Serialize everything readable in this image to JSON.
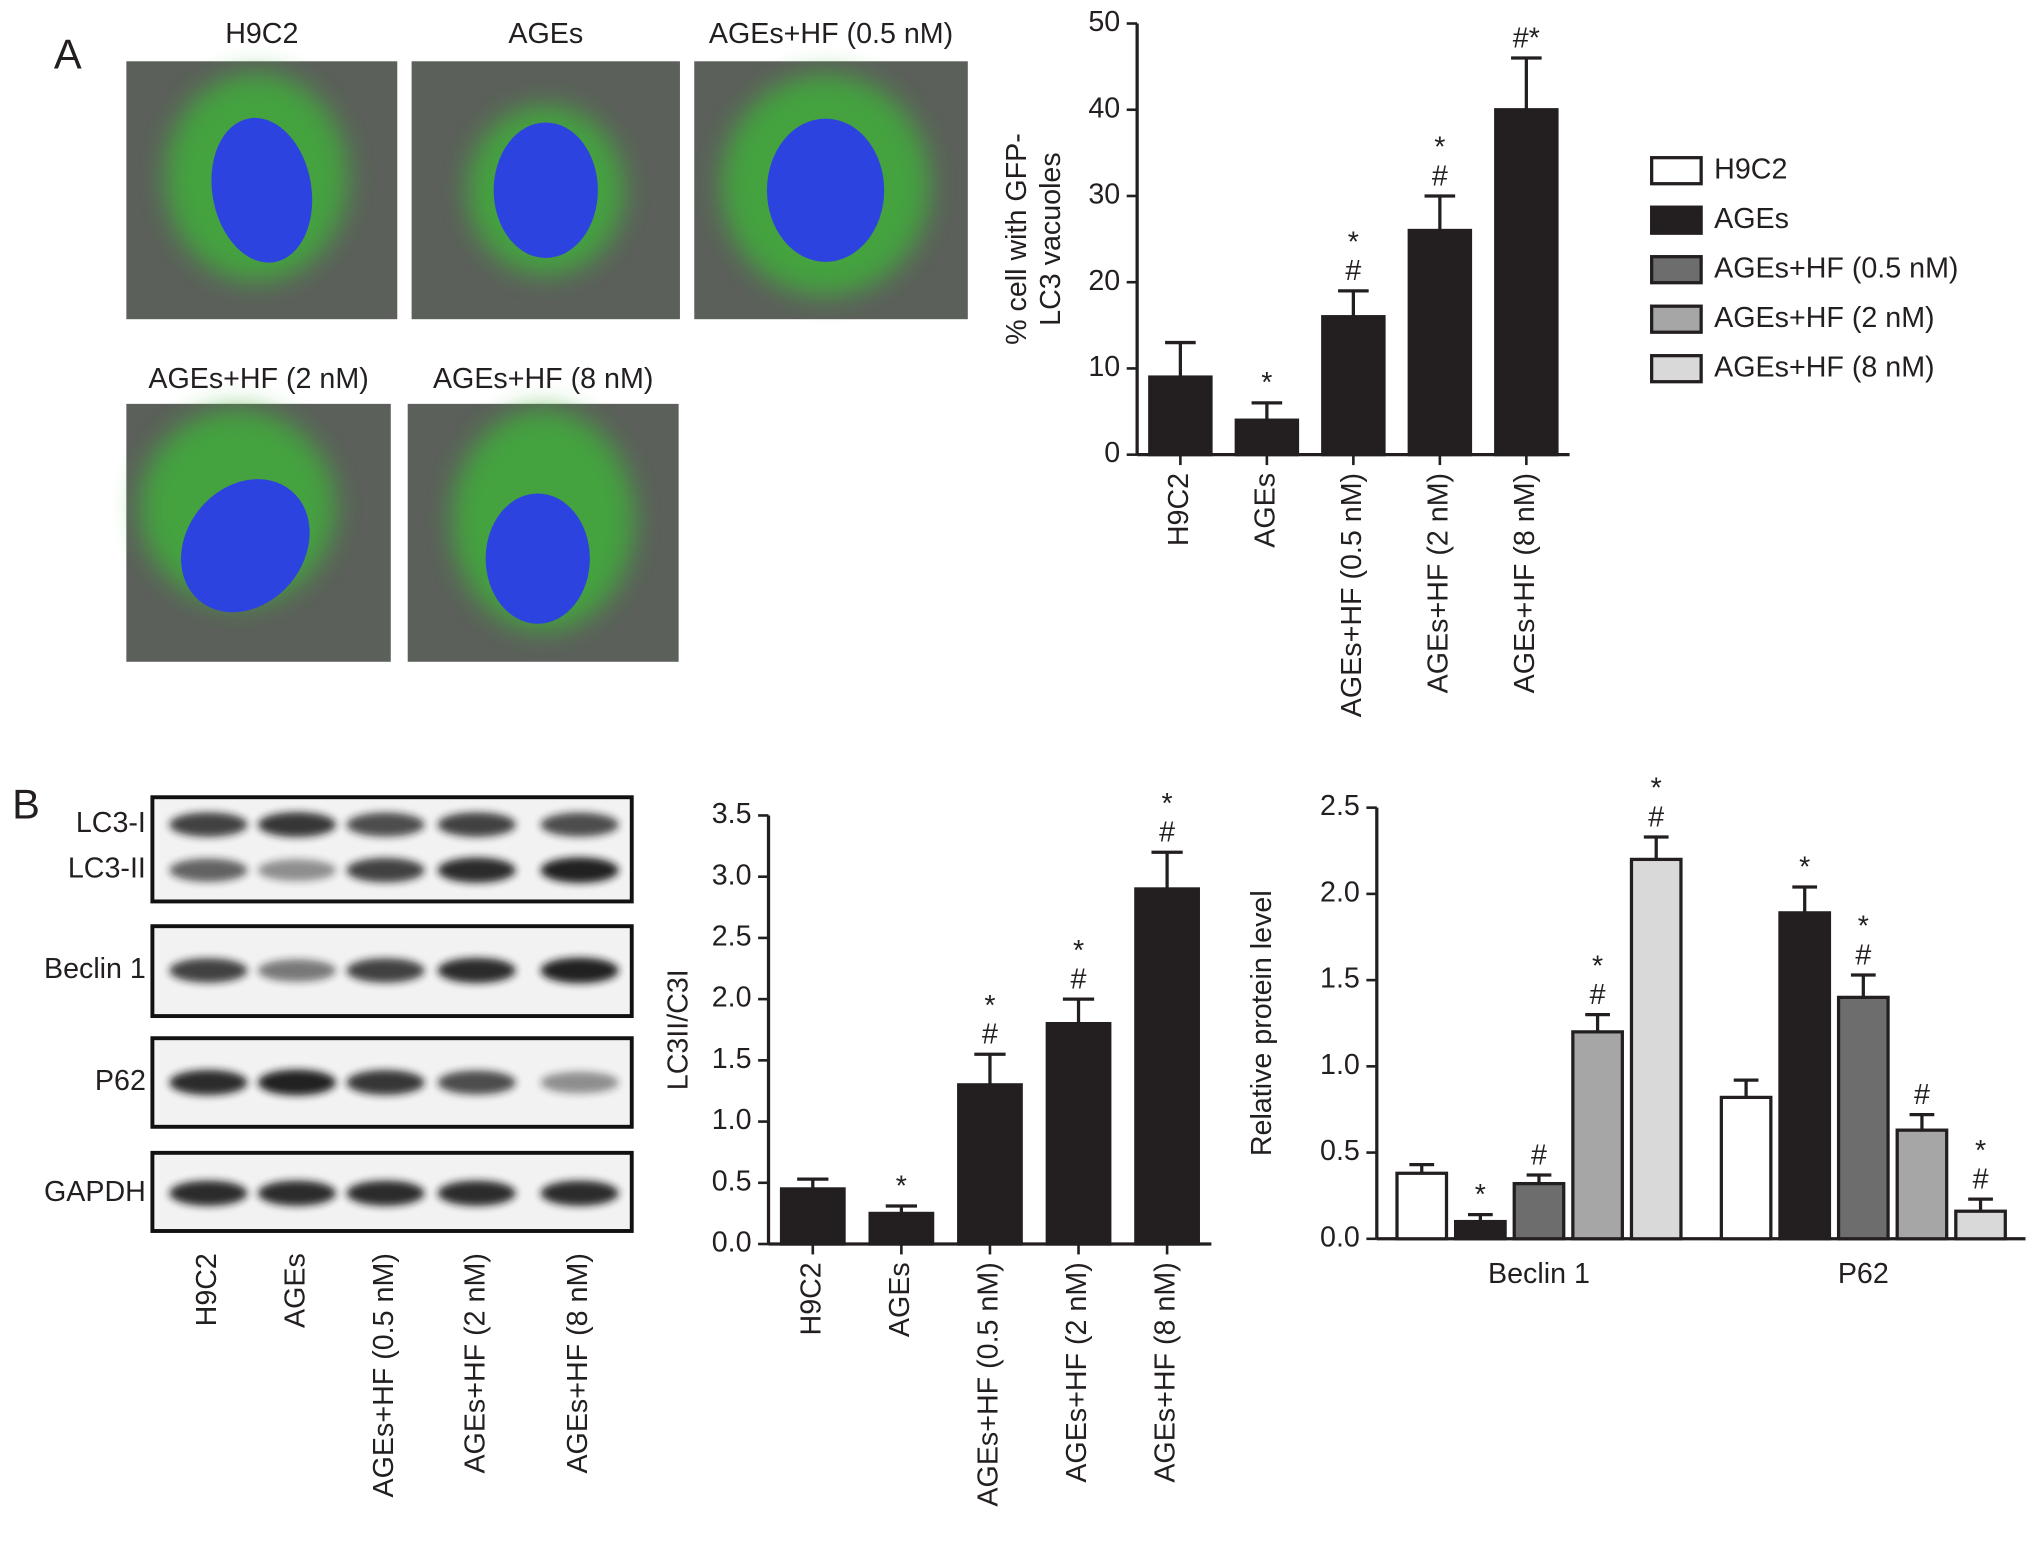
{
  "panels": [
    "A",
    "B"
  ],
  "micrographs": [
    "H9C2",
    "AGEs",
    "AGEs+HF (0.5 nM)",
    "AGEs+HF (2 nM)",
    "AGEs+HF (8 nM)"
  ],
  "blot": {
    "rows": [
      "LC3-I",
      "LC3-II",
      "Beclin 1",
      "P62",
      "GAPDH"
    ],
    "lanes": [
      "H9C2",
      "AGEs",
      "AGEs+HF (0.5 nM)",
      "AGEs+HF (2 nM)",
      "AGEs+HF (8 nM)"
    ]
  },
  "chart_data": [
    {
      "type": "bar",
      "ylabel": [
        "% cell with GFP-",
        "LC3 vacuoles"
      ],
      "categories": [
        "H9C2",
        "AGEs",
        "AGEs+HF (0.5 nM)",
        "AGEs+HF (2 nM)",
        "AGEs+HF (8 nM)"
      ],
      "values": [
        9,
        4,
        16,
        26,
        40
      ],
      "errors": [
        4,
        2,
        3,
        4,
        6
      ],
      "annotations": [
        null,
        [
          "*"
        ],
        [
          "*",
          "#"
        ],
        [
          "*",
          "#"
        ],
        [
          "#*"
        ]
      ],
      "color": "#231f20",
      "ylim": [
        0,
        50
      ],
      "yticks": [
        0,
        10,
        20,
        30,
        40,
        50
      ]
    },
    {
      "type": "bar",
      "ylabel": [
        "LC3II/C3I"
      ],
      "categories": [
        "H9C2",
        "AGEs",
        "AGEs+HF (0.5 nM)",
        "AGEs+HF (2 nM)",
        "AGEs+HF (8 nM)"
      ],
      "values": [
        0.45,
        0.25,
        1.3,
        1.8,
        2.9
      ],
      "errors": [
        0.08,
        0.06,
        0.25,
        0.2,
        0.3
      ],
      "annotations": [
        null,
        [
          "*"
        ],
        [
          "*",
          "#"
        ],
        [
          "*",
          "#"
        ],
        [
          "*",
          "#"
        ]
      ],
      "color": "#231f20",
      "ylim": [
        0,
        3.5
      ],
      "yticks": [
        {
          "value": 0,
          "label": "0.0"
        },
        0.5,
        {
          "value": 1,
          "label": "1.0"
        },
        1.5,
        {
          "value": 2,
          "label": "2.0"
        },
        2.5,
        {
          "value": 3,
          "label": "3.0"
        },
        3.5
      ]
    },
    {
      "type": "bar",
      "ylabel": [
        "Relative protein level"
      ],
      "categories": [
        "Beclin 1",
        "P62"
      ],
      "series": [
        {
          "name": "H9C2",
          "color": "#ffffff",
          "values": [
            0.38,
            0.82
          ],
          "errors": [
            0.05,
            0.1
          ],
          "annotations": [
            null,
            null
          ]
        },
        {
          "name": "AGEs",
          "color": "#231f20",
          "values": [
            0.1,
            1.89
          ],
          "errors": [
            0.04,
            0.15
          ],
          "annotations": [
            [
              "*"
            ],
            [
              "*"
            ]
          ]
        },
        {
          "name": "AGEs+HF (0.5 nM)",
          "color": "#6d6d6d",
          "values": [
            0.32,
            1.4
          ],
          "errors": [
            0.05,
            0.13
          ],
          "annotations": [
            [
              "#"
            ],
            [
              "*",
              "#"
            ]
          ]
        },
        {
          "name": "AGEs+HF (2 nM)",
          "color": "#a6a6a6",
          "values": [
            1.2,
            0.63
          ],
          "errors": [
            0.1,
            0.09
          ],
          "annotations": [
            [
              "*",
              "#"
            ],
            [
              "#"
            ]
          ]
        },
        {
          "name": "AGEs+HF (8 nM)",
          "color": "#d9d9d9",
          "values": [
            2.2,
            0.16
          ],
          "errors": [
            0.13,
            0.07
          ],
          "annotations": [
            [
              "*",
              "#"
            ],
            [
              "*",
              "#"
            ]
          ]
        }
      ],
      "ylim": [
        0,
        2.5
      ],
      "yticks": [
        {
          "value": 0,
          "label": "0.0"
        },
        0.5,
        {
          "value": 1,
          "label": "1.0"
        },
        1.5,
        {
          "value": 2,
          "label": "2.0"
        },
        2.5
      ]
    }
  ]
}
